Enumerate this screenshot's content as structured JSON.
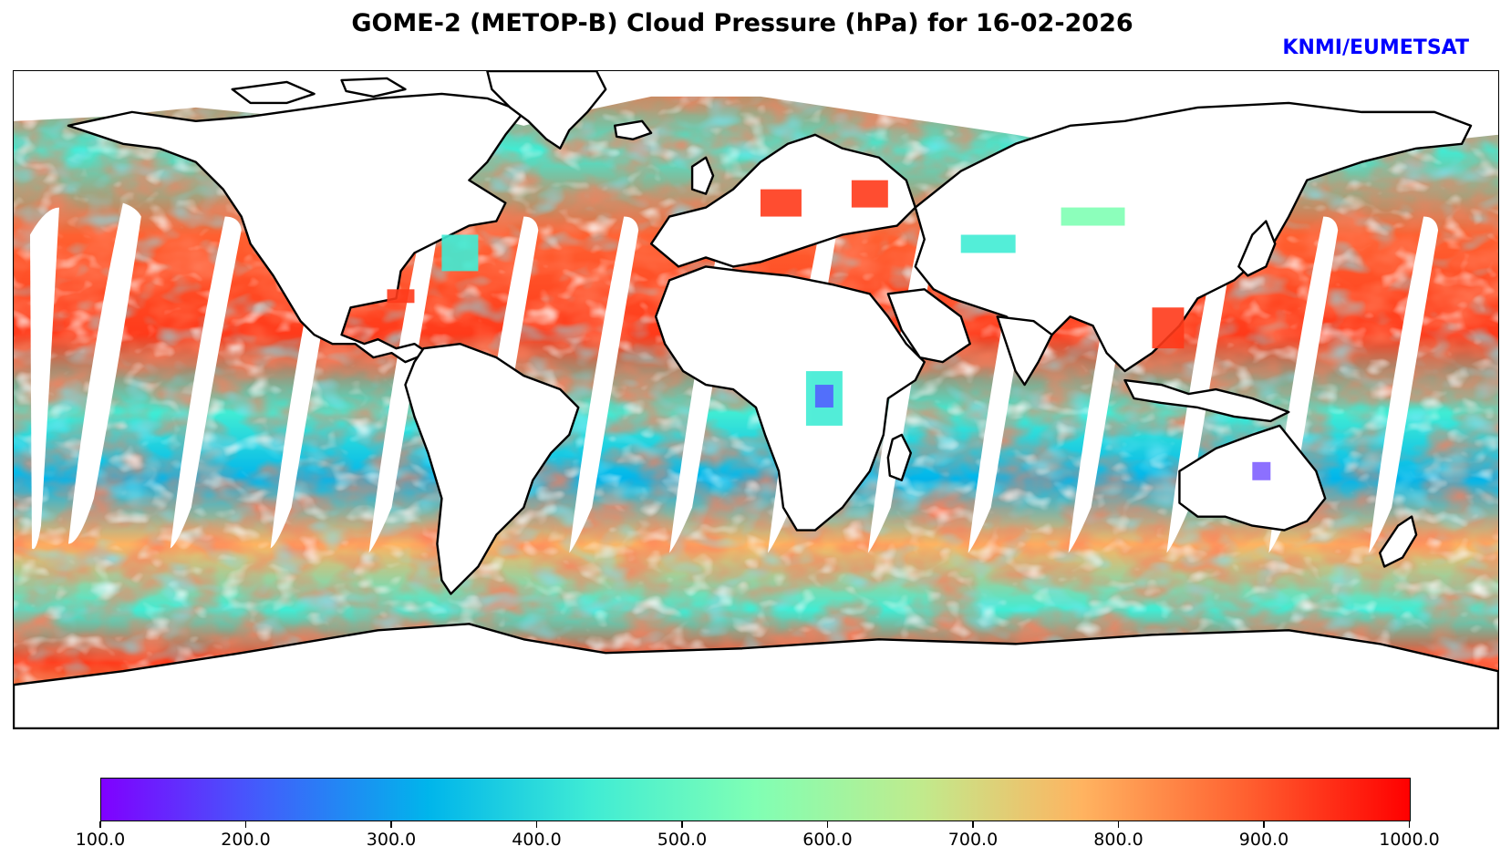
{
  "title": "GOME-2 (METOP-B) Cloud Pressure (hPa) for 16-02-2026",
  "credit": "KNMI/EUMETSAT",
  "colormap": {
    "name": "rainbow",
    "stops": [
      "#8000ff",
      "#4060fb",
      "#00b5eb",
      "#40ecd4",
      "#80ffb4",
      "#c0eb8d",
      "#ffb360",
      "#ff6030",
      "#ff0000"
    ]
  },
  "chart_data": {
    "type": "heatmap",
    "title": "GOME-2 (METOP-B) Cloud Pressure (hPa) for 16-02-2026",
    "quantity": "Cloud Pressure",
    "units": "hPa",
    "colorbar": {
      "min": 100.0,
      "max": 1000.0,
      "ticks": [
        "100.0",
        "200.0",
        "300.0",
        "400.0",
        "500.0",
        "600.0",
        "700.0",
        "800.0",
        "900.0",
        "1000.0"
      ]
    }
  }
}
